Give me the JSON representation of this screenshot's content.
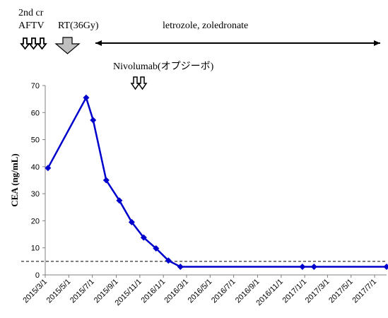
{
  "annotations": {
    "chemo_line1": "2nd cr",
    "chemo_line2": "AFTV",
    "radiotherapy": "RT(36Gy)",
    "hormone_bp": "letrozole, zoledronate",
    "immunotherapy": "Nivolumab(オプジーボ)"
  },
  "chart_data": {
    "type": "line",
    "title": "",
    "xlabel": "",
    "ylabel": "CEA (ng/mL)",
    "ylim": [
      0,
      70
    ],
    "yticks": [
      0,
      10,
      20,
      30,
      40,
      50,
      60,
      70
    ],
    "xrange": [
      "2015-03-01",
      "2017-08-01"
    ],
    "xticks": [
      {
        "date": "2015-03-01",
        "label": "2015/3/1"
      },
      {
        "date": "2015-05-01",
        "label": "2015/5/1"
      },
      {
        "date": "2015-07-01",
        "label": "2015/7/1"
      },
      {
        "date": "2015-09-01",
        "label": "2015/9/1"
      },
      {
        "date": "2015-11-01",
        "label": "2015/11/1"
      },
      {
        "date": "2016-01-01",
        "label": "2016/1/1"
      },
      {
        "date": "2016-03-01",
        "label": "2016/3/1"
      },
      {
        "date": "2016-05-01",
        "label": "2016/5/1"
      },
      {
        "date": "2016-07-01",
        "label": "2016/7/1"
      },
      {
        "date": "2016-09-01",
        "label": "2016/9/1"
      },
      {
        "date": "2016-11-01",
        "label": "2016/11/1"
      },
      {
        "date": "2017-01-01",
        "label": "2017/1/1"
      },
      {
        "date": "2017-03-01",
        "label": "2017/3/1"
      },
      {
        "date": "2017-05-01",
        "label": "2017/5/1"
      },
      {
        "date": "2017-07-01",
        "label": "2017/7/1"
      }
    ],
    "reference_line": 5,
    "series": [
      {
        "color": "#0000cc",
        "points": [
          {
            "x": "2015-03-08",
            "y": 39.5
          },
          {
            "x": "2015-06-15",
            "y": 65.5
          },
          {
            "x": "2015-07-03",
            "y": 57.2
          },
          {
            "x": "2015-08-06",
            "y": 35.0
          },
          {
            "x": "2015-09-09",
            "y": 27.5
          },
          {
            "x": "2015-10-11",
            "y": 19.5
          },
          {
            "x": "2015-11-11",
            "y": 13.8
          },
          {
            "x": "2015-12-13",
            "y": 9.8
          },
          {
            "x": "2016-01-14",
            "y": 5.3
          },
          {
            "x": "2016-02-14",
            "y": 3.0
          },
          {
            "x": "2016-12-26",
            "y": 3.0
          },
          {
            "x": "2017-01-25",
            "y": 3.0
          },
          {
            "x": "2017-08-01",
            "y": 3.0
          }
        ]
      }
    ]
  }
}
